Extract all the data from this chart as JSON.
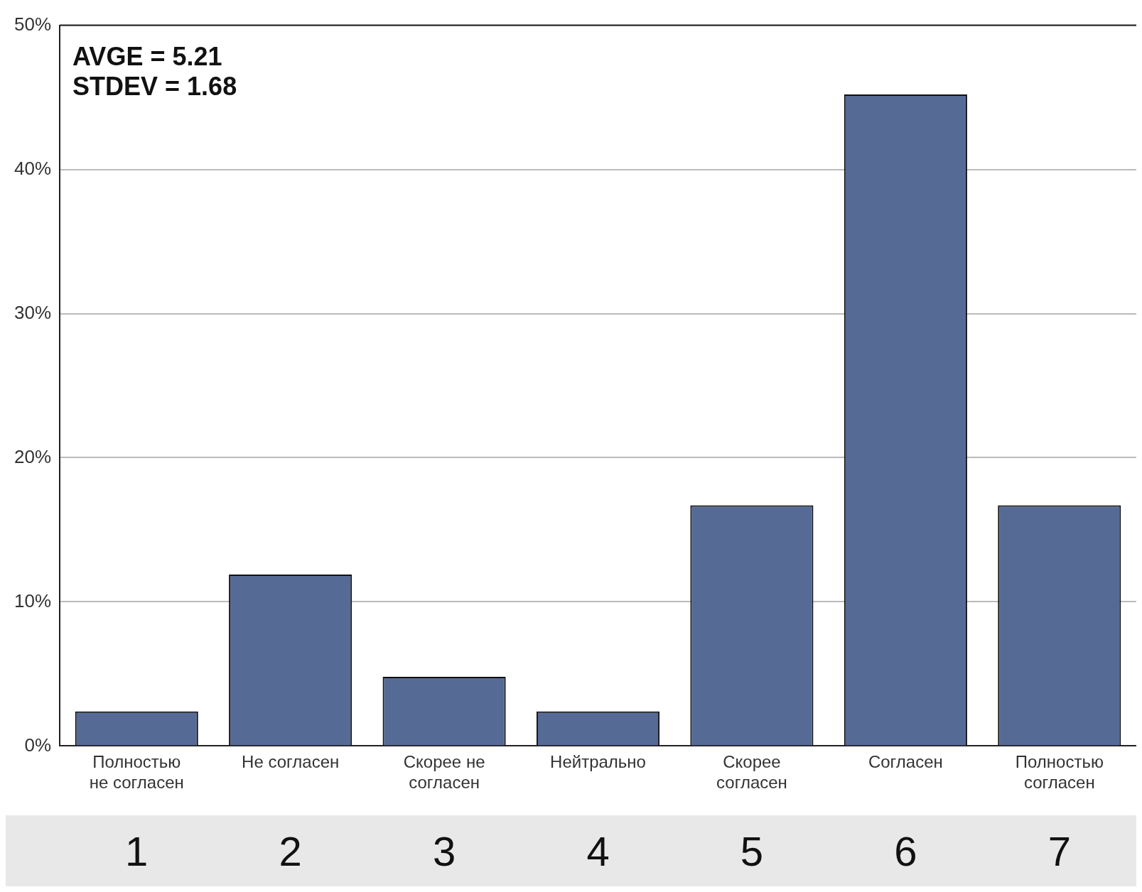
{
  "chart_data": {
    "type": "bar",
    "categories": [
      "Полностью не согласен",
      "Не согласен",
      "Скорее не согласен",
      "Нейтрально",
      "Скорее согласен",
      "Согласен",
      "Полностью согласен"
    ],
    "values": [
      2.4,
      11.9,
      4.8,
      2.4,
      16.7,
      45.2,
      16.7
    ],
    "color": "#566a96",
    "ylim": [
      0,
      50
    ],
    "yticks": [
      {
        "value": 0,
        "label": "0%"
      },
      {
        "value": 10,
        "label": "10%"
      },
      {
        "value": 20,
        "label": "20%"
      },
      {
        "value": 30,
        "label": "30%"
      },
      {
        "value": 40,
        "label": "40%"
      },
      {
        "value": 50,
        "label": "50%"
      }
    ],
    "grid": "y",
    "annotations": [
      "AVGE = 5.21",
      "STDEV = 1.68",
      "1",
      "2",
      "3",
      "4",
      "5",
      "6",
      "7"
    ]
  }
}
